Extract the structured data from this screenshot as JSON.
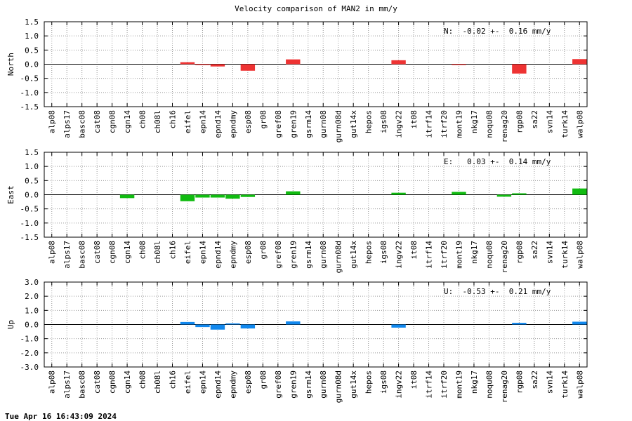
{
  "title": "Velocity comparison of MAN2 in mm/y",
  "timestamp": "Tue Apr 16 16:43:09 2024",
  "chart_data": [
    {
      "type": "bar",
      "ylabel": "North",
      "ylim": [
        -1.5,
        1.5
      ],
      "yticks": [
        1.5,
        1.0,
        0.5,
        0.0,
        -0.5,
        -1.0,
        -1.5
      ],
      "ytick_labels": [
        "1.5",
        "1.0",
        "0.5",
        "0.0",
        "-0.5",
        "-1.0",
        "-1.5"
      ],
      "color": "#ee3333",
      "annotation": "N:  -0.02 +-  0.16 mm/y",
      "categories": [
        "alp08",
        "alps17",
        "basc08",
        "cat08",
        "cgn08",
        "cgn14",
        "ch08",
        "ch08l",
        "ch16",
        "eifel",
        "epn14",
        "epnd14",
        "epndmy",
        "esp08",
        "gr08",
        "gref08",
        "gren19",
        "gsrm14",
        "gurn08",
        "gurn08d",
        "gut14x",
        "hepos",
        "igs08",
        "ingv22",
        "it08",
        "itrf14",
        "itrf20",
        "mont19",
        "nkg17",
        "noqu08",
        "renag20",
        "rgp08",
        "sa22",
        "svn14",
        "turk14",
        "walp08"
      ],
      "values": [
        0,
        0,
        0,
        0,
        0,
        0,
        0,
        0,
        0,
        0.07,
        -0.03,
        -0.08,
        0,
        -0.23,
        0,
        0,
        0.17,
        0,
        0,
        0,
        0,
        0,
        0,
        0.14,
        0,
        0,
        0,
        -0.03,
        0,
        0,
        0,
        -0.33,
        0,
        0,
        0,
        0.18
      ],
      "grid": true
    },
    {
      "type": "bar",
      "ylabel": "East",
      "ylim": [
        -1.5,
        1.5
      ],
      "yticks": [
        1.5,
        1.0,
        0.5,
        0.0,
        -0.5,
        -1.0,
        -1.5
      ],
      "ytick_labels": [
        "1.5",
        "1.0",
        "0.5",
        "0.0",
        "-0.5",
        "-1.0",
        "-1.5"
      ],
      "color": "#11bb11",
      "annotation": "E:   0.03 +-  0.14 mm/y",
      "categories": [
        "alp08",
        "alps17",
        "basc08",
        "cat08",
        "cgn08",
        "cgn14",
        "ch08",
        "ch08l",
        "ch16",
        "eifel",
        "epn14",
        "epnd14",
        "epndmy",
        "esp08",
        "gr08",
        "gref08",
        "gren19",
        "gsrm14",
        "gurn08",
        "gurn08d",
        "gut14x",
        "hepos",
        "igs08",
        "ingv22",
        "it08",
        "itrf14",
        "itrf20",
        "mont19",
        "nkg17",
        "noqu08",
        "renag20",
        "rgp08",
        "sa22",
        "svn14",
        "turk14",
        "walp08"
      ],
      "values": [
        0,
        0,
        0,
        0,
        0,
        -0.12,
        0,
        0,
        0,
        -0.23,
        -0.1,
        -0.1,
        -0.14,
        -0.08,
        0,
        0,
        0.12,
        0,
        0,
        0,
        0,
        0,
        0,
        0.07,
        0,
        0,
        0,
        0.1,
        0,
        0,
        -0.07,
        0.05,
        0,
        0,
        0,
        0.22
      ],
      "grid": true
    },
    {
      "type": "bar",
      "ylabel": "Up",
      "ylim": [
        -3.0,
        3.0
      ],
      "yticks": [
        3.0,
        2.0,
        1.0,
        0.0,
        -1.0,
        -2.0,
        -3.0
      ],
      "ytick_labels": [
        "3.0",
        "2.0",
        "1.0",
        "0.0",
        "-1.0",
        "-2.0",
        "-3.0"
      ],
      "color": "#1188ee",
      "annotation": "U:  -0.53 +-  0.21 mm/y",
      "categories": [
        "alp08",
        "alps17",
        "basc08",
        "cat08",
        "cgn08",
        "cgn14",
        "ch08",
        "ch08l",
        "ch16",
        "eifel",
        "epn14",
        "epnd14",
        "epndmy",
        "esp08",
        "gr08",
        "gref08",
        "gren19",
        "gsrm14",
        "gurn08",
        "gurn08d",
        "gut14x",
        "hepos",
        "igs08",
        "ingv22",
        "it08",
        "itrf14",
        "itrf20",
        "mont19",
        "nkg17",
        "noqu08",
        "renag20",
        "rgp08",
        "sa22",
        "svn14",
        "turk14",
        "walp08"
      ],
      "values": [
        0,
        0,
        0,
        0,
        0,
        0,
        0,
        0,
        0,
        0.18,
        -0.18,
        -0.36,
        0.08,
        -0.28,
        0,
        0,
        0.22,
        0,
        0,
        0,
        0,
        0,
        0,
        -0.22,
        0,
        0,
        0,
        0,
        0,
        0,
        0,
        0.12,
        0,
        0,
        0,
        0.2
      ],
      "grid": true
    }
  ]
}
